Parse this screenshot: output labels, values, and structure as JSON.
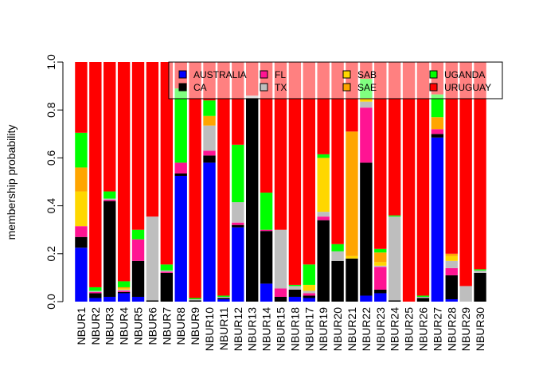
{
  "chart_data": {
    "type": "bar",
    "stacked": true,
    "title": "",
    "xlabel": "",
    "ylabel": "membership probability",
    "ylim": [
      0,
      1
    ],
    "yticks": [
      "0.0",
      "0.2",
      "0.4",
      "0.6",
      "0.8",
      "1.0"
    ],
    "legend_placement": "top-right",
    "grid": false,
    "categories": [
      "NBUR1",
      "NBUR2",
      "NBUR3",
      "NBUR4",
      "NBUR5",
      "NBUR6",
      "NBUR7",
      "NBUR8",
      "NBUR9",
      "NBUR10",
      "NBUR11",
      "NBUR12",
      "NBUR13",
      "NBUR14",
      "NBUR15",
      "NBUR18",
      "NBUR17",
      "NBUR19",
      "NBUR20",
      "NBUR21",
      "NBUR22",
      "NBUR23",
      "NBUR24",
      "NBUR25",
      "NBUR26",
      "NBUR27",
      "NBUR28",
      "NBUR29",
      "NBUR30"
    ],
    "series": [
      {
        "name": "AUSTRALIA",
        "color": "#0000ff",
        "values": [
          0.225,
          0.015,
          0.02,
          0.035,
          0.02,
          0,
          0,
          0.525,
          0,
          0.58,
          0.01,
          0.31,
          0,
          0.075,
          0,
          0.02,
          0.015,
          0,
          0,
          0,
          0.025,
          0.035,
          0,
          0,
          0,
          0.685,
          0.01,
          0,
          0
        ]
      },
      {
        "name": "CA",
        "color": "#000000",
        "values": [
          0.045,
          0.02,
          0.4,
          0.005,
          0.15,
          0.005,
          0.12,
          0.01,
          0.005,
          0.03,
          0.005,
          0.01,
          0.85,
          0.22,
          0.02,
          0.03,
          0.01,
          0.34,
          0.17,
          0.18,
          0.555,
          0.015,
          0.005,
          0,
          0.015,
          0.015,
          0.1,
          0,
          0.12
        ]
      },
      {
        "name": "FL",
        "color": "#ff1493",
        "values": [
          0.045,
          0.005,
          0.005,
          0.005,
          0.09,
          0,
          0.005,
          0.045,
          0,
          0.02,
          0,
          0.01,
          0,
          0.005,
          0.035,
          0,
          0.01,
          0.015,
          0,
          0,
          0.23,
          0.095,
          0,
          0,
          0,
          0.02,
          0.03,
          0,
          0
        ]
      },
      {
        "name": "TX",
        "color": "#bebebe",
        "values": [
          0,
          0.005,
          0.005,
          0.005,
          0,
          0.35,
          0.005,
          0,
          0.005,
          0.105,
          0.005,
          0.085,
          0.01,
          0,
          0.245,
          0.015,
          0.01,
          0.02,
          0.04,
          0,
          0.025,
          0.005,
          0.35,
          0,
          0.005,
          0,
          0.03,
          0.065,
          0.01
        ]
      },
      {
        "name": "SAB",
        "color": "#ffd700",
        "values": [
          0.145,
          0,
          0,
          0.005,
          0,
          0,
          0,
          0,
          0,
          0,
          0,
          0,
          0,
          0,
          0,
          0,
          0.025,
          0.225,
          0,
          0.01,
          0.015,
          0.015,
          0,
          0,
          0,
          0,
          0.02,
          0,
          0
        ]
      },
      {
        "name": "SAE",
        "color": "#ffa500",
        "values": [
          0.1,
          0,
          0,
          0.005,
          0,
          0,
          0,
          0,
          0,
          0.04,
          0,
          0,
          0,
          0,
          0,
          0,
          0,
          0,
          0,
          0.52,
          0,
          0.04,
          0,
          0,
          0,
          0.05,
          0.01,
          0,
          0
        ]
      },
      {
        "name": "UGANDA",
        "color": "#00ff00",
        "values": [
          0.145,
          0.015,
          0.03,
          0.025,
          0.04,
          0,
          0.025,
          0.31,
          0.005,
          0.065,
          0.005,
          0.24,
          0,
          0.155,
          0,
          0.005,
          0.085,
          0.015,
          0.03,
          0,
          0.08,
          0.015,
          0.005,
          0,
          0.005,
          0.095,
          0,
          0,
          0.005
        ]
      },
      {
        "name": "URUGUAY",
        "color": "#ff0000",
        "values": [
          0.295,
          0.94,
          0.54,
          0.915,
          0.7,
          0.645,
          0.845,
          0.11,
          0.985,
          0.16,
          0.975,
          0.345,
          0.14,
          0.545,
          0.7,
          0.93,
          0.845,
          0.385,
          0.76,
          0.29,
          0.07,
          0.78,
          0.64,
          1,
          0.975,
          0.135,
          0.8,
          0.935,
          0.865
        ]
      }
    ]
  }
}
